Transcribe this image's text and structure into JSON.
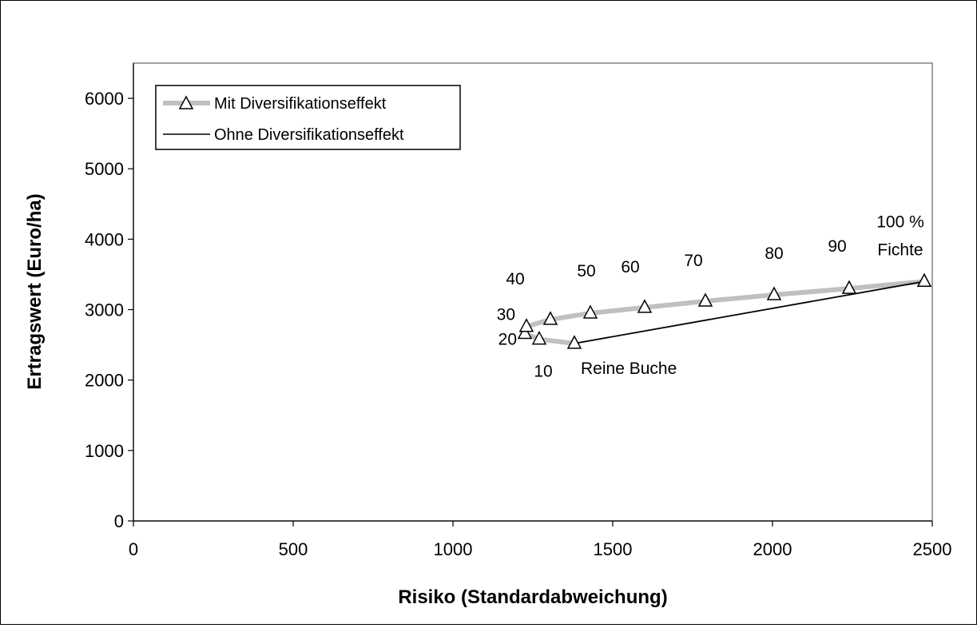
{
  "chart_data": {
    "type": "line",
    "title": "",
    "xlabel": "Risiko (Standardabweichung)",
    "ylabel": "Ertragswert (Euro/ha)",
    "xlim": [
      0,
      2500
    ],
    "ylim": [
      0,
      6500
    ],
    "xticks": [
      0,
      500,
      1000,
      1500,
      2000,
      2500
    ],
    "yticks": [
      0,
      1000,
      2000,
      3000,
      4000,
      5000,
      6000
    ],
    "grid": false,
    "legend_position": "top-left",
    "series": [
      {
        "name": "Mit Diversifikationseffekt",
        "color": "#c0c0c0",
        "marker": "triangle",
        "points": [
          {
            "share": 0,
            "x": 1380,
            "y": 2520
          },
          {
            "share": 10,
            "x": 1270,
            "y": 2580
          },
          {
            "share": 20,
            "x": 1225,
            "y": 2660
          },
          {
            "share": 30,
            "x": 1230,
            "y": 2760
          },
          {
            "share": 40,
            "x": 1305,
            "y": 2860
          },
          {
            "share": 50,
            "x": 1430,
            "y": 2950
          },
          {
            "share": 60,
            "x": 1600,
            "y": 3030
          },
          {
            "share": 70,
            "x": 1790,
            "y": 3120
          },
          {
            "share": 80,
            "x": 2005,
            "y": 3210
          },
          {
            "share": 90,
            "x": 2240,
            "y": 3300
          },
          {
            "share": 100,
            "x": 2475,
            "y": 3400
          }
        ]
      },
      {
        "name": "Ohne Diversifikationseffekt",
        "color": "#000000",
        "marker": "none",
        "points": [
          {
            "x": 1380,
            "y": 2520
          },
          {
            "x": 2475,
            "y": 3400
          }
        ]
      }
    ],
    "annotations": [
      {
        "text": "Reine Buche",
        "anchor_x": 1380,
        "anchor_y": 2520
      },
      {
        "text": "10",
        "anchor_x": 1270,
        "anchor_y": 2580
      },
      {
        "text": "20",
        "anchor_x": 1225,
        "anchor_y": 2660
      },
      {
        "text": "30",
        "anchor_x": 1230,
        "anchor_y": 2760
      },
      {
        "text": "40",
        "anchor_x": 1305,
        "anchor_y": 2860
      },
      {
        "text": "50",
        "anchor_x": 1430,
        "anchor_y": 2950
      },
      {
        "text": "60",
        "anchor_x": 1600,
        "anchor_y": 3030
      },
      {
        "text": "70",
        "anchor_x": 1790,
        "anchor_y": 3120
      },
      {
        "text": "80",
        "anchor_x": 2005,
        "anchor_y": 3210
      },
      {
        "text": "90",
        "anchor_x": 2240,
        "anchor_y": 3300
      },
      {
        "text": "100 %",
        "anchor_x": 2475,
        "anchor_y": 3400
      },
      {
        "text": "Fichte",
        "anchor_x": 2475,
        "anchor_y": 3400
      }
    ]
  }
}
